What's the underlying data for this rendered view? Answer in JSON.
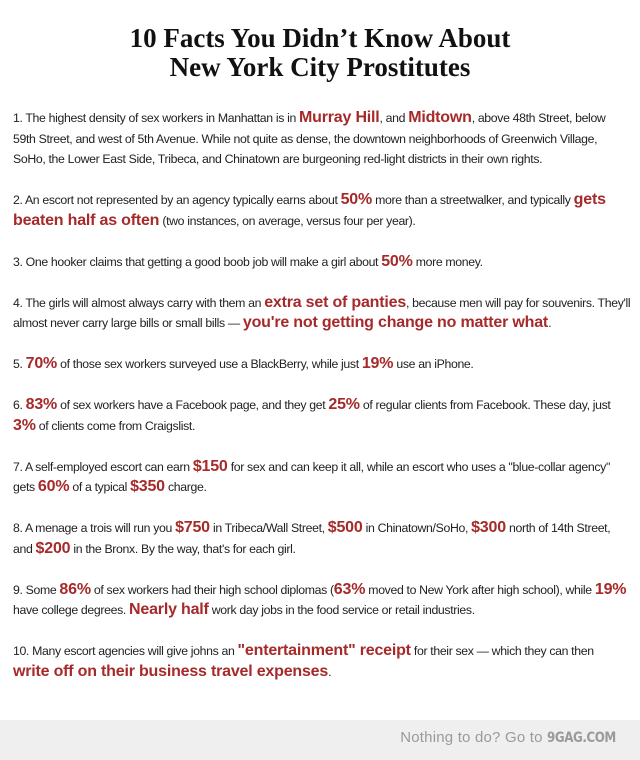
{
  "title": {
    "line1": "10 Facts You Didn’t Know About",
    "line2": "New York City Prostitutes"
  },
  "highlight_color": "#a62a2a",
  "facts": [
    [
      {
        "t": "1. The highest density of sex workers in Manhattan is in "
      },
      {
        "t": "Murray Hill",
        "h": true
      },
      {
        "t": ", and "
      },
      {
        "t": "Midtown",
        "h": true
      },
      {
        "t": ", above 48th Street, below 59th Street, and west of 5th Avenue. While not quite as dense, the downtown neighborhoods of Greenwich Village, SoHo, the Lower East Side, Tribeca, and Chinatown are burgeoning red-light districts in their own rights."
      }
    ],
    [
      {
        "t": "2. An escort not represented by an agency typically earns about "
      },
      {
        "t": "50%",
        "h": true
      },
      {
        "t": " more than a streetwalker, and typically "
      },
      {
        "t": "gets beaten half as often",
        "h": true
      },
      {
        "t": " (two instances, on average, versus four per year)."
      }
    ],
    [
      {
        "t": "3. One hooker claims that getting a good boob job will make a girl about "
      },
      {
        "t": "50%",
        "h": true
      },
      {
        "t": " more money."
      }
    ],
    [
      {
        "t": "4. The girls will almost always carry with them an "
      },
      {
        "t": "extra set of panties",
        "h": true
      },
      {
        "t": ", because men will pay for souvenirs. They'll almost never carry large bills or small bills — "
      },
      {
        "t": "you're not getting change no matter what",
        "h": true
      },
      {
        "t": "."
      }
    ],
    [
      {
        "t": "5. "
      },
      {
        "t": "70%",
        "h": true
      },
      {
        "t": " of those sex workers surveyed use a BlackBerry, while just "
      },
      {
        "t": "19%",
        "h": true
      },
      {
        "t": " use an iPhone."
      }
    ],
    [
      {
        "t": "6. "
      },
      {
        "t": "83%",
        "h": true
      },
      {
        "t": " of sex workers have a Facebook page, and they get "
      },
      {
        "t": "25%",
        "h": true
      },
      {
        "t": " of regular clients from Facebook. These day, just "
      },
      {
        "t": "3%",
        "h": true
      },
      {
        "t": " of clients come from Craigslist."
      }
    ],
    [
      {
        "t": "7. A self-employed escort can earn "
      },
      {
        "t": "$150",
        "h": true
      },
      {
        "t": " for sex and can keep it all, while an escort who uses a \"blue-collar agency\" gets "
      },
      {
        "t": "60%",
        "h": true
      },
      {
        "t": " of a typical "
      },
      {
        "t": "$350",
        "h": true
      },
      {
        "t": " charge."
      }
    ],
    [
      {
        "t": "8. A menage a trois will run you "
      },
      {
        "t": "$750",
        "h": true
      },
      {
        "t": " in Tribeca/Wall Street, "
      },
      {
        "t": "$500",
        "h": true
      },
      {
        "t": " in Chinatown/SoHo, "
      },
      {
        "t": "$300",
        "h": true
      },
      {
        "t": " north of 14th Street, and "
      },
      {
        "t": "$200",
        "h": true
      },
      {
        "t": " in the Bronx. By the way, that's for each girl."
      }
    ],
    [
      {
        "t": "9. Some "
      },
      {
        "t": "86%",
        "h": true
      },
      {
        "t": " of sex workers had their high school diplomas ("
      },
      {
        "t": "63%",
        "h": true
      },
      {
        "t": " moved to New York after high school), while "
      },
      {
        "t": "19%",
        "h": true
      },
      {
        "t": " have college degrees. "
      },
      {
        "t": "Nearly half",
        "h": true
      },
      {
        "t": " work day jobs in the food service or retail industries."
      }
    ],
    [
      {
        "t": "10. Many escort agencies will give johns an "
      },
      {
        "t": "\"entertainment\" receipt",
        "h": true
      },
      {
        "t": " for their sex — which they can then "
      },
      {
        "t": "write off on their business travel expenses",
        "h": true
      },
      {
        "t": "."
      }
    ]
  ],
  "footer": {
    "text": "Nothing to do? Go to ",
    "brand": "9GAG.COM"
  }
}
